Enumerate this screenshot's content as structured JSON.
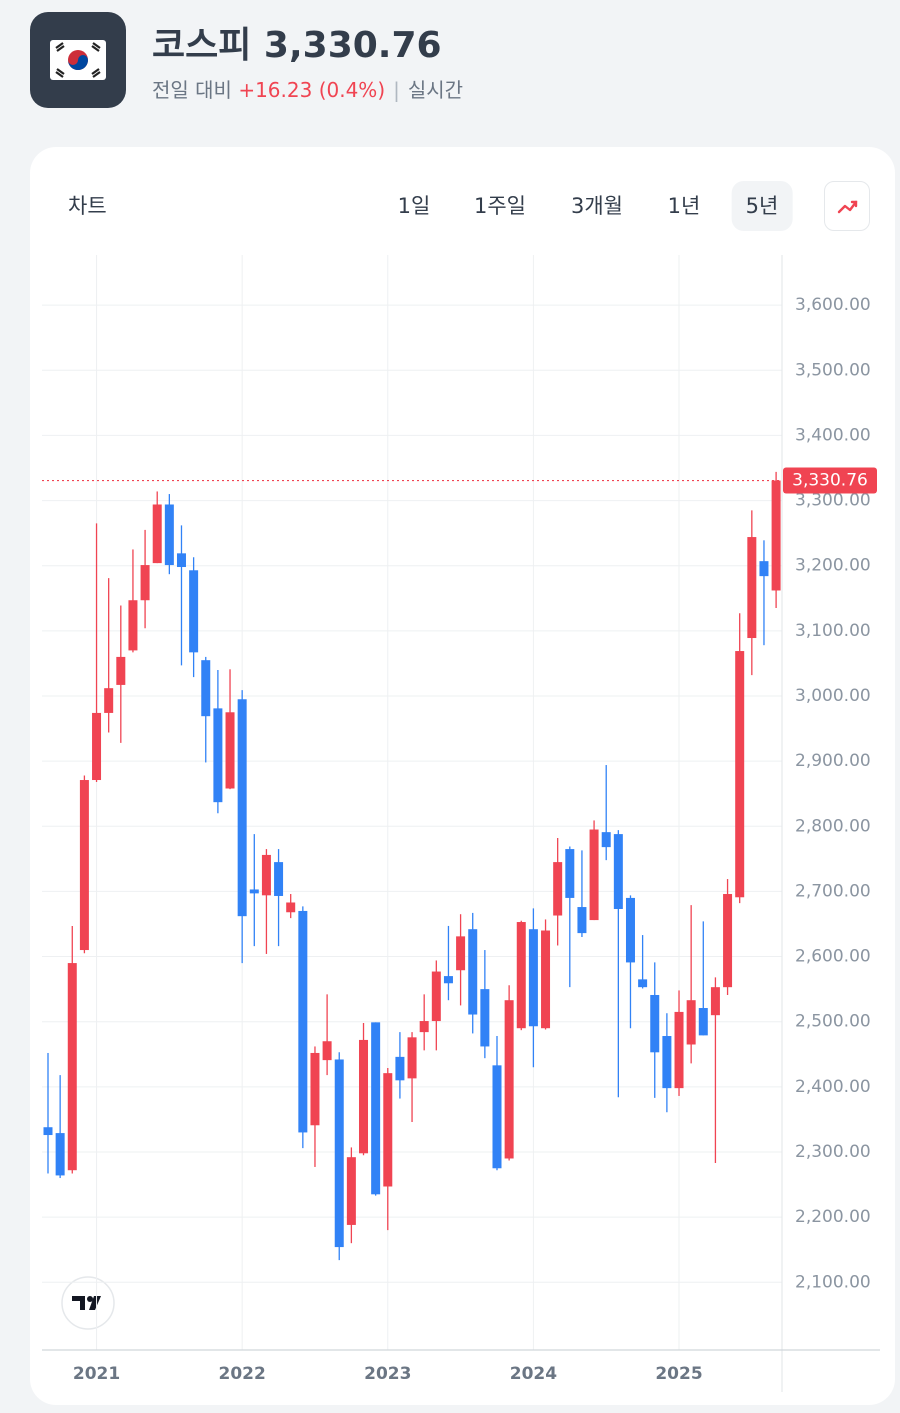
{
  "header": {
    "name": "코스피",
    "price": "3,330.76",
    "change_caption": "전일 대비",
    "change": "+16.23 (0.4%)",
    "separator": "|",
    "status": "실시간"
  },
  "tabs": {
    "title": "차트",
    "ranges": [
      "1일",
      "1주일",
      "3개월",
      "1년",
      "5년"
    ],
    "active": 4
  },
  "chart_data": {
    "type": "candlestick",
    "categories": [
      null,
      null,
      null,
      null,
      "2021",
      null,
      null,
      null,
      null,
      null,
      null,
      null,
      null,
      null,
      null,
      null,
      "2022",
      null,
      null,
      null,
      null,
      null,
      null,
      null,
      null,
      null,
      null,
      null,
      "2023",
      null,
      null,
      null,
      null,
      null,
      null,
      null,
      null,
      null,
      null,
      null,
      "2024",
      null,
      null,
      null,
      null,
      null,
      null,
      null,
      null,
      null,
      null,
      null,
      "2025",
      null,
      null,
      null,
      null,
      null,
      null,
      null,
      null
    ],
    "open": [
      2338,
      2329,
      2272,
      2610,
      2871,
      2974,
      3017,
      3070,
      3147,
      3204,
      3294,
      3219,
      3193,
      3055,
      2981,
      2858,
      2995,
      2703,
      2694,
      2745,
      2668,
      2670,
      2341,
      2441,
      2442,
      2188,
      2298,
      2499,
      2247,
      2446,
      2413,
      2484,
      2501,
      2570,
      2579,
      2642,
      2550,
      2433,
      2290,
      2490,
      2642,
      2490,
      2663,
      2765,
      2676,
      2656,
      2791,
      2788,
      2690,
      2565,
      2541,
      2478,
      2398,
      2465,
      2521,
      2510,
      2553,
      2691,
      3089,
      3207,
      3162
    ],
    "high": [
      2452,
      2418,
      2647,
      2878,
      3265,
      3181,
      3139,
      3225,
      3255,
      3314,
      3310,
      3262,
      3213,
      3060,
      3040,
      3041,
      3009,
      2788,
      2765,
      2765,
      2696,
      2677,
      2462,
      2542,
      2453,
      2307,
      2498,
      2499,
      2429,
      2484,
      2484,
      2542,
      2594,
      2647,
      2665,
      2667,
      2610,
      2478,
      2556,
      2655,
      2674,
      2657,
      2782,
      2769,
      2763,
      2809,
      2894,
      2794,
      2694,
      2633,
      2591,
      2513,
      2548,
      2679,
      2654,
      2568,
      2719,
      3127,
      3285,
      3239,
      3344
    ],
    "low": [
      2267,
      2260,
      2267,
      2605,
      2868,
      2944,
      2928,
      3067,
      3104,
      3204,
      3187,
      3047,
      3029,
      2898,
      2820,
      2857,
      2590,
      2616,
      2604,
      2616,
      2659,
      2306,
      2277,
      2418,
      2134,
      2160,
      2295,
      2233,
      2180,
      2382,
      2346,
      2456,
      2456,
      2533,
      2525,
      2482,
      2444,
      2272,
      2287,
      2487,
      2430,
      2488,
      2617,
      2553,
      2630,
      2656,
      2748,
      2384,
      2490,
      2551,
      2383,
      2361,
      2386,
      2436,
      2479,
      2283,
      2541,
      2682,
      3032,
      3078,
      3135
    ],
    "close": [
      2326,
      2264,
      2590,
      2871,
      2974,
      3012,
      3060,
      3147,
      3201,
      3294,
      3201,
      3198,
      3067,
      2969,
      2837,
      2975,
      2662,
      2697,
      2756,
      2693,
      2683,
      2330,
      2452,
      2470,
      2154,
      2292,
      2472,
      2235,
      2421,
      2410,
      2476,
      2501,
      2577,
      2559,
      2631,
      2511,
      2462,
      2275,
      2533,
      2653,
      2493,
      2640,
      2745,
      2690,
      2636,
      2795,
      2768,
      2673,
      2591,
      2553,
      2453,
      2398,
      2515,
      2533,
      2479,
      2553,
      2696,
      3069,
      3244,
      3184,
      3330.76
    ],
    "up_color": "#f04452",
    "down_color": "#3182f6",
    "ylim": [
      1996,
      3677
    ],
    "yticks": [
      {
        "value": 2100,
        "label": "2,100.00"
      },
      {
        "value": 2200,
        "label": "2,200.00"
      },
      {
        "value": 2300,
        "label": "2,300.00"
      },
      {
        "value": 2400,
        "label": "2,400.00"
      },
      {
        "value": 2500,
        "label": "2,500.00"
      },
      {
        "value": 2600,
        "label": "2,600.00"
      },
      {
        "value": 2700,
        "label": "2,700.00"
      },
      {
        "value": 2800,
        "label": "2,800.00"
      },
      {
        "value": 2900,
        "label": "2,900.00"
      },
      {
        "value": 3000,
        "label": "3,000.00"
      },
      {
        "value": 3100,
        "label": "3,100.00"
      },
      {
        "value": 3200,
        "label": "3,200.00"
      },
      {
        "value": 3300,
        "label": "3,300.00"
      },
      {
        "value": 3400,
        "label": "3,400.00"
      },
      {
        "value": 3500,
        "label": "3,500.00"
      },
      {
        "value": 3600,
        "label": "3,600.00"
      }
    ],
    "price_line": {
      "value": 3330.76,
      "label": "3,330.76"
    },
    "grid": true
  }
}
